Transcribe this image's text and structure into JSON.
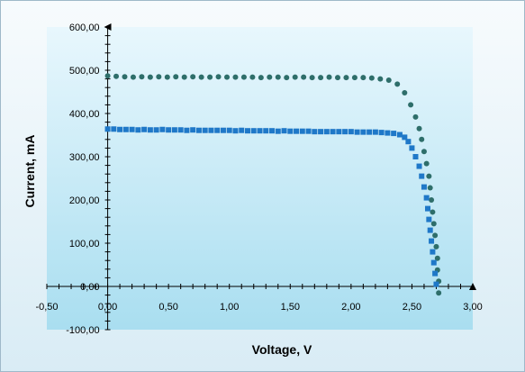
{
  "chart_data": {
    "type": "scatter",
    "title": "",
    "xlabel": "Voltage, V",
    "ylabel": "Current, mA",
    "xlim": [
      -0.5,
      3.0
    ],
    "ylim": [
      -100,
      600
    ],
    "x_ticks": [
      "-0,50",
      "0,00",
      "0,50",
      "1,00",
      "1,50",
      "2,00",
      "2,50",
      "3,00"
    ],
    "y_ticks": [
      "-100,00",
      "0,00",
      "100,00",
      "200,00",
      "300,00",
      "400,00",
      "500,00",
      "600,00"
    ],
    "grid": false,
    "legend": "none",
    "series": [
      {
        "marker": "circle",
        "color": "#2e6e6a",
        "points": [
          [
            0.0,
            487
          ],
          [
            0.07,
            486
          ],
          [
            0.14,
            485
          ],
          [
            0.21,
            484
          ],
          [
            0.28,
            485
          ],
          [
            0.35,
            484
          ],
          [
            0.42,
            485
          ],
          [
            0.49,
            484
          ],
          [
            0.56,
            485
          ],
          [
            0.63,
            484
          ],
          [
            0.7,
            485
          ],
          [
            0.77,
            484
          ],
          [
            0.84,
            484
          ],
          [
            0.91,
            485
          ],
          [
            0.98,
            484
          ],
          [
            1.05,
            484
          ],
          [
            1.12,
            484
          ],
          [
            1.19,
            484
          ],
          [
            1.26,
            483
          ],
          [
            1.33,
            484
          ],
          [
            1.4,
            484
          ],
          [
            1.47,
            483
          ],
          [
            1.54,
            484
          ],
          [
            1.61,
            484
          ],
          [
            1.68,
            483
          ],
          [
            1.75,
            483
          ],
          [
            1.82,
            484
          ],
          [
            1.89,
            483
          ],
          [
            1.96,
            483
          ],
          [
            2.03,
            483
          ],
          [
            2.1,
            483
          ],
          [
            2.17,
            482
          ],
          [
            2.24,
            480
          ],
          [
            2.31,
            477
          ],
          [
            2.38,
            468
          ],
          [
            2.44,
            448
          ],
          [
            2.49,
            420
          ],
          [
            2.53,
            392
          ],
          [
            2.56,
            365
          ],
          [
            2.58,
            340
          ],
          [
            2.6,
            312
          ],
          [
            2.62,
            284
          ],
          [
            2.64,
            255
          ],
          [
            2.65,
            228
          ],
          [
            2.66,
            200
          ],
          [
            2.67,
            172
          ],
          [
            2.68,
            145
          ],
          [
            2.69,
            118
          ],
          [
            2.7,
            92
          ],
          [
            2.71,
            65
          ],
          [
            2.71,
            38
          ],
          [
            2.72,
            12
          ],
          [
            2.72,
            -15
          ]
        ]
      },
      {
        "marker": "square",
        "color": "#1f78c8",
        "points": [
          [
            0.0,
            364
          ],
          [
            0.05,
            364
          ],
          [
            0.1,
            363
          ],
          [
            0.15,
            363
          ],
          [
            0.2,
            363
          ],
          [
            0.25,
            362
          ],
          [
            0.3,
            363
          ],
          [
            0.35,
            362
          ],
          [
            0.4,
            362
          ],
          [
            0.45,
            363
          ],
          [
            0.5,
            362
          ],
          [
            0.55,
            362
          ],
          [
            0.6,
            362
          ],
          [
            0.65,
            361
          ],
          [
            0.7,
            362
          ],
          [
            0.75,
            361
          ],
          [
            0.8,
            361
          ],
          [
            0.85,
            361
          ],
          [
            0.9,
            361
          ],
          [
            0.95,
            361
          ],
          [
            1.0,
            361
          ],
          [
            1.05,
            360
          ],
          [
            1.1,
            361
          ],
          [
            1.15,
            360
          ],
          [
            1.2,
            360
          ],
          [
            1.25,
            360
          ],
          [
            1.3,
            360
          ],
          [
            1.35,
            360
          ],
          [
            1.4,
            359
          ],
          [
            1.45,
            360
          ],
          [
            1.5,
            359
          ],
          [
            1.55,
            359
          ],
          [
            1.6,
            359
          ],
          [
            1.65,
            359
          ],
          [
            1.7,
            358
          ],
          [
            1.75,
            358
          ],
          [
            1.8,
            358
          ],
          [
            1.85,
            358
          ],
          [
            1.9,
            358
          ],
          [
            1.95,
            358
          ],
          [
            2.0,
            358
          ],
          [
            2.05,
            357
          ],
          [
            2.1,
            357
          ],
          [
            2.15,
            357
          ],
          [
            2.2,
            357
          ],
          [
            2.25,
            356
          ],
          [
            2.3,
            355
          ],
          [
            2.35,
            354
          ],
          [
            2.4,
            351
          ],
          [
            2.44,
            345
          ],
          [
            2.47,
            335
          ],
          [
            2.5,
            320
          ],
          [
            2.53,
            300
          ],
          [
            2.56,
            278
          ],
          [
            2.58,
            255
          ],
          [
            2.6,
            230
          ],
          [
            2.62,
            205
          ],
          [
            2.63,
            180
          ],
          [
            2.64,
            155
          ],
          [
            2.65,
            130
          ],
          [
            2.66,
            105
          ],
          [
            2.67,
            80
          ],
          [
            2.68,
            55
          ],
          [
            2.69,
            30
          ],
          [
            2.7,
            5
          ]
        ]
      }
    ]
  }
}
